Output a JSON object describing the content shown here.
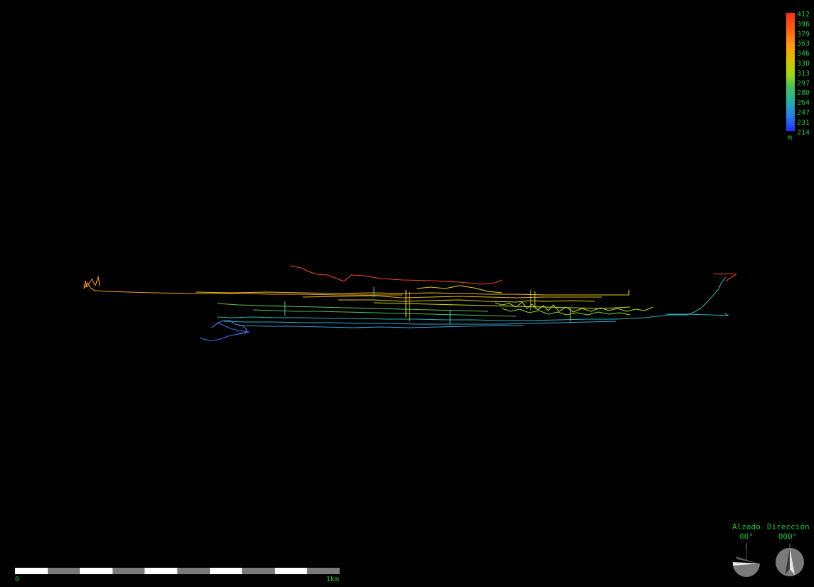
{
  "legend": {
    "values": [
      "412",
      "396",
      "379",
      "363",
      "346",
      "330",
      "313",
      "297",
      "280",
      "264",
      "247",
      "231",
      "214"
    ],
    "unit": "m"
  },
  "scale": {
    "start_label": "0",
    "end_label": "1km"
  },
  "elevation_gauge": {
    "title": "Alzado",
    "value": "00°"
  },
  "direction_gauge": {
    "title": "Dirección",
    "value": "000°"
  },
  "colors": {
    "background": "#000000",
    "label_green": "#22c33c"
  },
  "icons": [
    "elevation-dial-icon",
    "compass-icon"
  ]
}
